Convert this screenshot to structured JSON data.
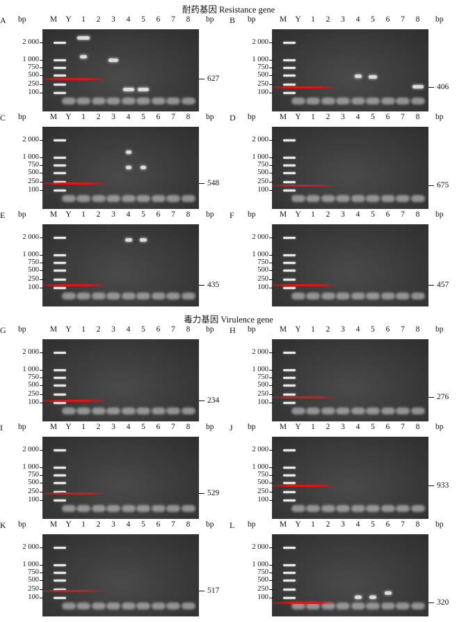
{
  "headers": {
    "resistance": "耐药基因 Resistance gene",
    "virulence": "毒力基因 Virulence gene"
  },
  "common": {
    "bp": "bp",
    "lanes": [
      "M",
      "Y",
      "1",
      "2",
      "3",
      "4",
      "5",
      "6",
      "7",
      "8"
    ],
    "ladder": [
      "2 000",
      "1 000",
      "750",
      "500",
      "250",
      "100"
    ]
  },
  "panels": [
    {
      "letter": "A",
      "product": "627"
    },
    {
      "letter": "B",
      "product": "406"
    },
    {
      "letter": "C",
      "product": "548"
    },
    {
      "letter": "D",
      "product": "675"
    },
    {
      "letter": "E",
      "product": "435"
    },
    {
      "letter": "F",
      "product": "457"
    },
    {
      "letter": "G",
      "product": "234"
    },
    {
      "letter": "H",
      "product": "276"
    },
    {
      "letter": "I",
      "product": "529"
    },
    {
      "letter": "J",
      "product": "933"
    },
    {
      "letter": "K",
      "product": "517"
    },
    {
      "letter": "L",
      "product": "320"
    }
  ]
}
